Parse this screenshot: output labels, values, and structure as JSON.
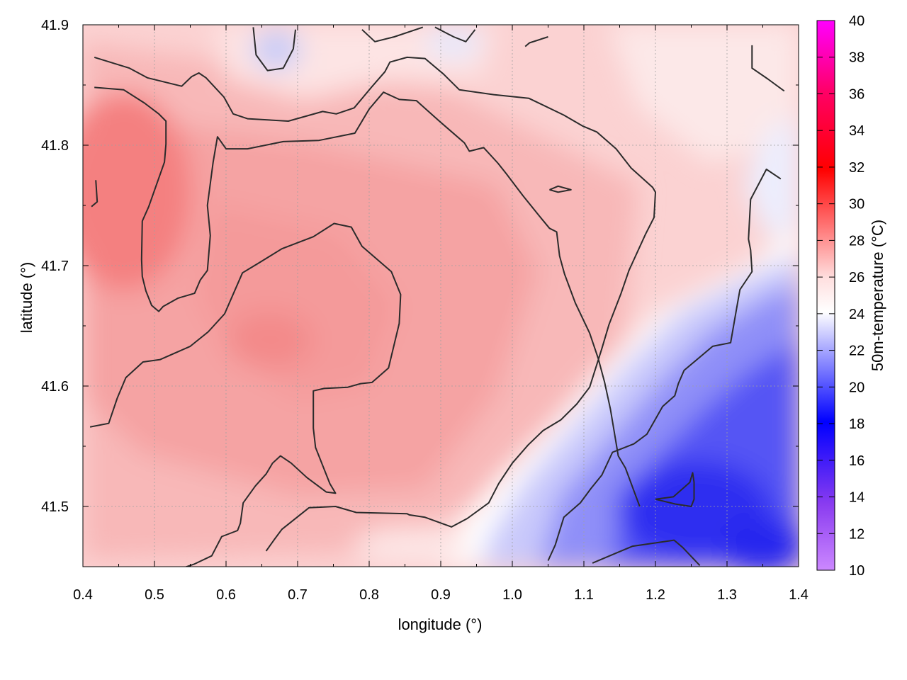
{
  "chart_data": {
    "type": "heatmap",
    "xlabel": "longitude (°)",
    "ylabel": "latitude (°)",
    "colorbar_label": "50m-temperature (°C)",
    "xlim": [
      0.4,
      1.4
    ],
    "ylim": [
      41.45,
      41.9
    ],
    "x_ticks": [
      "0.4",
      "0.5",
      "0.6",
      "0.7",
      "0.8",
      "0.9",
      "1.0",
      "1.1",
      "1.2",
      "1.3",
      "1.4"
    ],
    "y_ticks": [
      "41.5",
      "41.6",
      "41.7",
      "41.8",
      "41.9"
    ],
    "clim": [
      10,
      40
    ],
    "colorbar_ticks": [
      "10",
      "12",
      "14",
      "16",
      "18",
      "20",
      "22",
      "24",
      "26",
      "28",
      "30",
      "32",
      "34",
      "36",
      "38",
      "40"
    ],
    "grid": true,
    "contours": [
      [
        [
          0.416,
          41.873
        ],
        [
          0.465,
          41.864
        ],
        [
          0.49,
          41.856
        ],
        [
          0.538,
          41.849
        ],
        [
          0.552,
          41.857
        ],
        [
          0.562,
          41.86
        ],
        [
          0.572,
          41.856
        ],
        [
          0.597,
          41.84
        ],
        [
          0.61,
          41.826
        ],
        [
          0.63,
          41.822
        ],
        [
          0.687,
          41.82
        ],
        [
          0.735,
          41.828
        ],
        [
          0.754,
          41.826
        ],
        [
          0.779,
          41.831
        ],
        [
          0.803,
          41.848
        ],
        [
          0.822,
          41.861
        ],
        [
          0.829,
          41.869
        ],
        [
          0.853,
          41.873
        ],
        [
          0.878,
          41.872
        ],
        [
          0.904,
          41.859
        ],
        [
          0.926,
          41.846
        ],
        [
          0.974,
          41.842
        ],
        [
          1.023,
          41.839
        ],
        [
          1.072,
          41.825
        ],
        [
          1.098,
          41.816
        ],
        [
          1.118,
          41.811
        ],
        [
          1.145,
          41.797
        ],
        [
          1.166,
          41.781
        ],
        [
          1.196,
          41.765
        ],
        [
          1.2,
          41.761
        ],
        [
          1.198,
          41.74
        ],
        [
          1.186,
          41.726
        ],
        [
          1.163,
          41.696
        ],
        [
          1.152,
          41.677
        ],
        [
          1.135,
          41.651
        ],
        [
          1.125,
          41.631
        ],
        [
          1.108,
          41.599
        ],
        [
          1.09,
          41.585
        ],
        [
          1.068,
          41.572
        ],
        [
          1.043,
          41.563
        ],
        [
          1.022,
          41.551
        ],
        [
          1.0,
          41.536
        ],
        [
          0.981,
          41.519
        ],
        [
          0.967,
          41.503
        ],
        [
          0.937,
          41.49
        ],
        [
          0.915,
          41.483
        ],
        [
          0.878,
          41.491
        ],
        [
          0.856,
          41.493
        ],
        [
          0.853,
          41.494
        ],
        [
          0.782,
          41.495
        ],
        [
          0.753,
          41.5
        ],
        [
          0.716,
          41.499
        ],
        [
          0.678,
          41.481
        ],
        [
          0.668,
          41.473
        ],
        [
          0.656,
          41.463
        ]
      ],
      [
        [
          0.416,
          41.848
        ],
        [
          0.457,
          41.846
        ],
        [
          0.486,
          41.835
        ],
        [
          0.506,
          41.826
        ],
        [
          0.516,
          41.82
        ],
        [
          0.516,
          41.801
        ],
        [
          0.514,
          41.786
        ],
        [
          0.505,
          41.771
        ],
        [
          0.492,
          41.749
        ],
        [
          0.483,
          41.737
        ],
        [
          0.482,
          41.705
        ],
        [
          0.483,
          41.691
        ],
        [
          0.488,
          41.679
        ],
        [
          0.496,
          41.667
        ],
        [
          0.502,
          41.664
        ],
        [
          0.506,
          41.662
        ],
        [
          0.512,
          41.666
        ],
        [
          0.533,
          41.673
        ],
        [
          0.556,
          41.677
        ],
        [
          0.564,
          41.688
        ],
        [
          0.574,
          41.696
        ],
        [
          0.578,
          41.725
        ],
        [
          0.574,
          41.75
        ],
        [
          0.582,
          41.786
        ],
        [
          0.588,
          41.807
        ],
        [
          0.6,
          41.797
        ],
        [
          0.63,
          41.797
        ],
        [
          0.68,
          41.803
        ],
        [
          0.73,
          41.804
        ],
        [
          0.78,
          41.81
        ],
        [
          0.8,
          41.83
        ],
        [
          0.82,
          41.844
        ],
        [
          0.842,
          41.838
        ],
        [
          0.866,
          41.837
        ],
        [
          0.898,
          41.82
        ],
        [
          0.933,
          41.802
        ],
        [
          0.94,
          41.795
        ],
        [
          0.96,
          41.798
        ],
        [
          0.98,
          41.785
        ],
        [
          0.992,
          41.776
        ],
        [
          1.015,
          41.758
        ],
        [
          1.038,
          41.741
        ],
        [
          1.052,
          41.731
        ],
        [
          1.062,
          41.728
        ],
        [
          1.066,
          41.708
        ],
        [
          1.073,
          41.693
        ],
        [
          1.088,
          41.669
        ],
        [
          1.108,
          41.644
        ],
        [
          1.12,
          41.623
        ],
        [
          1.129,
          41.603
        ],
        [
          1.137,
          41.581
        ],
        [
          1.143,
          41.56
        ],
        [
          1.148,
          41.542
        ],
        [
          1.158,
          41.532
        ],
        [
          1.178,
          41.5
        ]
      ],
      [
        [
          0.41,
          41.566
        ],
        [
          0.436,
          41.569
        ],
        [
          0.448,
          41.59
        ],
        [
          0.46,
          41.607
        ],
        [
          0.484,
          41.62
        ],
        [
          0.508,
          41.622
        ],
        [
          0.55,
          41.633
        ],
        [
          0.575,
          41.645
        ],
        [
          0.598,
          41.66
        ],
        [
          0.623,
          41.694
        ],
        [
          0.648,
          41.703
        ],
        [
          0.678,
          41.714
        ],
        [
          0.722,
          41.724
        ],
        [
          0.751,
          41.735
        ],
        [
          0.775,
          41.732
        ],
        [
          0.79,
          41.716
        ],
        [
          0.831,
          41.695
        ],
        [
          0.844,
          41.676
        ],
        [
          0.842,
          41.652
        ],
        [
          0.827,
          41.615
        ],
        [
          0.804,
          41.603
        ],
        [
          0.788,
          41.602
        ],
        [
          0.77,
          41.599
        ],
        [
          0.737,
          41.598
        ],
        [
          0.722,
          41.596
        ],
        [
          0.722,
          41.565
        ],
        [
          0.725,
          41.549
        ],
        [
          0.745,
          41.519
        ],
        [
          0.753,
          41.511
        ],
        [
          0.74,
          41.512
        ],
        [
          0.713,
          41.524
        ],
        [
          0.691,
          41.536
        ],
        [
          0.676,
          41.542
        ],
        [
          0.665,
          41.536
        ],
        [
          0.656,
          41.527
        ],
        [
          0.641,
          41.517
        ],
        [
          0.624,
          41.503
        ],
        [
          0.62,
          41.486
        ],
        [
          0.616,
          41.48
        ],
        [
          0.594,
          41.475
        ],
        [
          0.58,
          41.459
        ],
        [
          0.555,
          41.452
        ],
        [
          0.525,
          41.446
        ]
      ],
      [
        [
          0.418,
          41.771
        ],
        [
          0.42,
          41.753
        ],
        [
          0.412,
          41.749
        ]
      ],
      [
        [
          1.052,
          41.763
        ],
        [
          1.064,
          41.766
        ],
        [
          1.082,
          41.763
        ],
        [
          1.064,
          41.761
        ],
        [
          1.052,
          41.763
        ]
      ],
      [
        [
          0.638,
          41.898
        ],
        [
          0.642,
          41.875
        ],
        [
          0.658,
          41.862
        ],
        [
          0.68,
          41.864
        ],
        [
          0.694,
          41.88
        ],
        [
          0.697,
          41.896
        ]
      ],
      [
        [
          0.79,
          41.896
        ],
        [
          0.808,
          41.886
        ],
        [
          0.835,
          41.89
        ],
        [
          0.875,
          41.898
        ]
      ],
      [
        [
          0.892,
          41.898
        ],
        [
          0.918,
          41.89
        ],
        [
          0.935,
          41.886
        ],
        [
          0.948,
          41.896
        ]
      ],
      [
        [
          1.018,
          41.882
        ],
        [
          1.024,
          41.885
        ],
        [
          1.05,
          41.89
        ]
      ],
      [
        [
          1.335,
          41.883
        ],
        [
          1.335,
          41.864
        ],
        [
          1.357,
          41.855
        ],
        [
          1.38,
          41.845
        ]
      ],
      [
        [
          1.375,
          41.772
        ],
        [
          1.355,
          41.78
        ],
        [
          1.333,
          41.755
        ],
        [
          1.33,
          41.722
        ],
        [
          1.333,
          41.713
        ],
        [
          1.335,
          41.695
        ],
        [
          1.318,
          41.68
        ],
        [
          1.313,
          41.663
        ],
        [
          1.305,
          41.636
        ],
        [
          1.28,
          41.633
        ],
        [
          1.24,
          41.613
        ],
        [
          1.232,
          41.602
        ],
        [
          1.227,
          41.592
        ],
        [
          1.21,
          41.583
        ],
        [
          1.188,
          41.56
        ],
        [
          1.17,
          41.552
        ],
        [
          1.14,
          41.545
        ],
        [
          1.125,
          41.526
        ],
        [
          1.11,
          41.515
        ],
        [
          1.095,
          41.503
        ],
        [
          1.072,
          41.491
        ],
        [
          1.06,
          41.468
        ],
        [
          1.05,
          41.455
        ]
      ],
      [
        [
          1.2,
          41.506
        ],
        [
          1.225,
          41.508
        ],
        [
          1.248,
          41.52
        ],
        [
          1.252,
          41.528
        ],
        [
          1.254,
          41.52
        ],
        [
          1.254,
          41.506
        ],
        [
          1.25,
          41.5
        ],
        [
          1.228,
          41.502
        ],
        [
          1.2,
          41.506
        ]
      ],
      [
        [
          1.112,
          41.453
        ],
        [
          1.148,
          41.462
        ],
        [
          1.168,
          41.467
        ],
        [
          1.226,
          41.472
        ],
        [
          1.238,
          41.466
        ],
        [
          1.262,
          41.451
        ]
      ]
    ]
  }
}
